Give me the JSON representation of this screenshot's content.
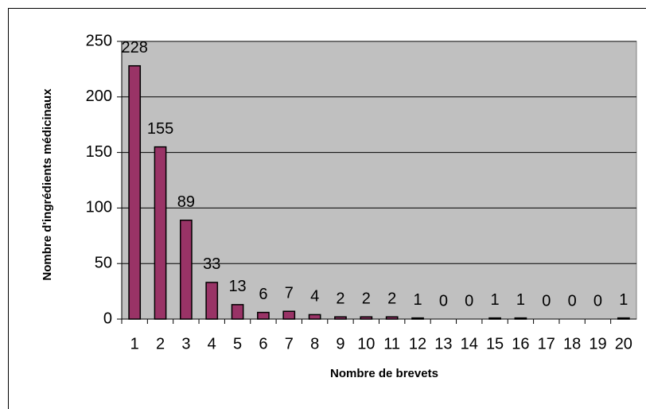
{
  "chart_data": {
    "type": "bar",
    "xlabel": "Nombre de brevets",
    "ylabel": "Nombre d'ingrédients médicinaux",
    "categories": [
      "1",
      "2",
      "3",
      "4",
      "5",
      "6",
      "7",
      "8",
      "9",
      "10",
      "11",
      "12",
      "13",
      "14",
      "15",
      "16",
      "17",
      "18",
      "19",
      "20"
    ],
    "values": [
      228,
      155,
      89,
      33,
      13,
      6,
      7,
      4,
      2,
      2,
      2,
      1,
      0,
      0,
      1,
      1,
      0,
      0,
      0,
      1
    ],
    "color": "#993366",
    "ylim": [
      0,
      250
    ],
    "yticks": [
      0,
      50,
      100,
      150,
      200,
      250
    ],
    "grid": true
  }
}
